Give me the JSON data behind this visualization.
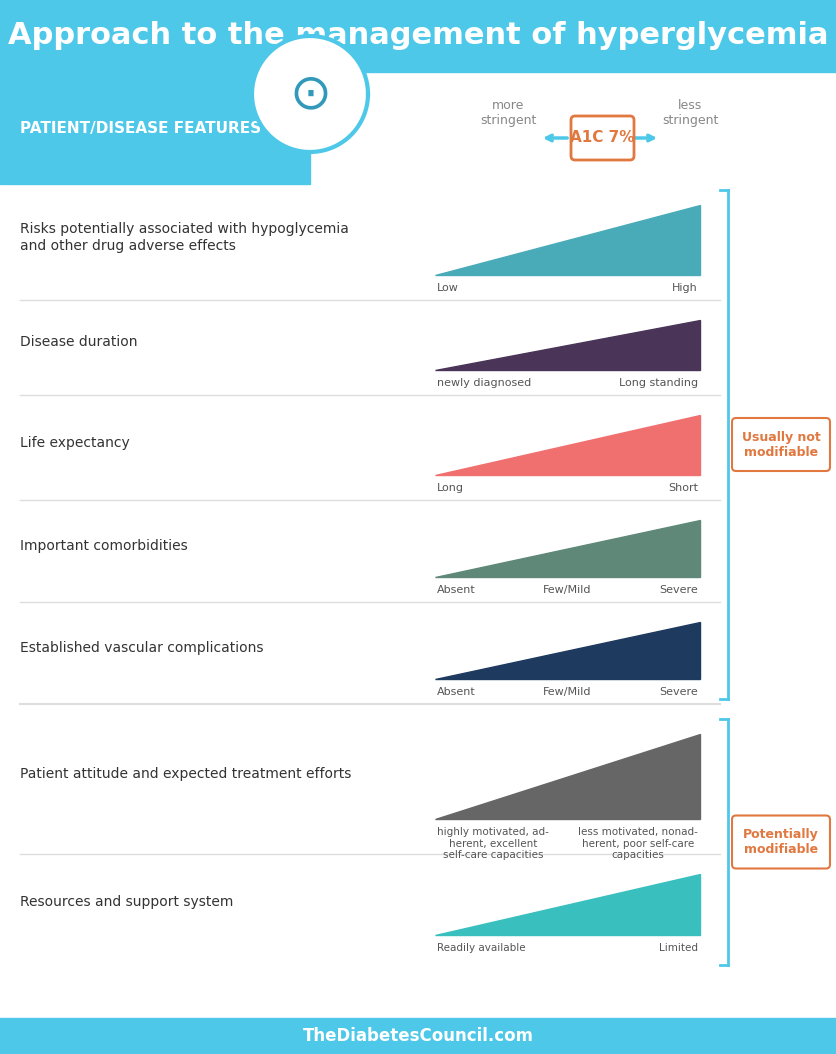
{
  "title": "Approach to the management of hyperglycemia",
  "title_bg": "#4ec8e8",
  "title_color": "#ffffff",
  "title_fontsize": 22,
  "header_bg": "#4ec8e8",
  "header_text": "PATIENT/DISEASE FEATURES",
  "header_text_color": "#ffffff",
  "header_fontsize": 11,
  "a1c_label": "A1C 7%",
  "a1c_color": "#e07840",
  "a1c_border": "#e07840",
  "more_stringent": "more\nstringent",
  "less_stringent": "less\nstringent",
  "arrow_color": "#4ec8e8",
  "footer_text": "TheDiabetesCouncil.com",
  "footer_bg": "#4ec8e8",
  "footer_color": "#ffffff",
  "bg_color": "#ffffff",
  "separator_color": "#dddddd",
  "rows": [
    {
      "label": "Risks potentially associated with hypoglycemia\nand other drug adverse effects",
      "triangle_color": "#4aabb8",
      "left_label": "Low",
      "right_label": "High",
      "direction": "up"
    },
    {
      "label": "Disease duration",
      "triangle_color": "#4a3558",
      "left_label": "newly diagnosed",
      "right_label": "Long standing",
      "direction": "up"
    },
    {
      "label": "Life expectancy",
      "triangle_color": "#f07070",
      "left_label": "Long",
      "right_label": "Short",
      "direction": "up"
    },
    {
      "label": "Important comorbidities",
      "triangle_color": "#5f8878",
      "left_label": "Absent",
      "right_label": "Severe",
      "mid_label": "Few/Mild",
      "direction": "up"
    },
    {
      "label": "Established vascular complications",
      "triangle_color": "#1e3a5f",
      "left_label": "Absent",
      "right_label": "Severe",
      "mid_label": "Few/Mild",
      "direction": "up"
    }
  ],
  "rows2": [
    {
      "label": "Patient attitude and expected treatment efforts",
      "triangle_color": "#666666",
      "left_label": "highly motivated, ad-\nherent, excellent\nself-care capacities",
      "right_label": "less motivated, nonad-\nherent, poor self-care\ncapacities",
      "direction": "up"
    },
    {
      "label": "Resources and support system",
      "triangle_color": "#3abfbf",
      "left_label": "Readily available",
      "right_label": "Limited",
      "direction": "up"
    }
  ],
  "bracket1_color": "#4ec8e8",
  "bracket1_label": "Usually not\nmodifiable",
  "bracket1_label_color": "#e07840",
  "bracket1_border": "#e07840",
  "bracket2_color": "#4ec8e8",
  "bracket2_label": "Potentially\nmodifiable",
  "bracket2_label_color": "#e07840",
  "bracket2_border": "#e07840"
}
